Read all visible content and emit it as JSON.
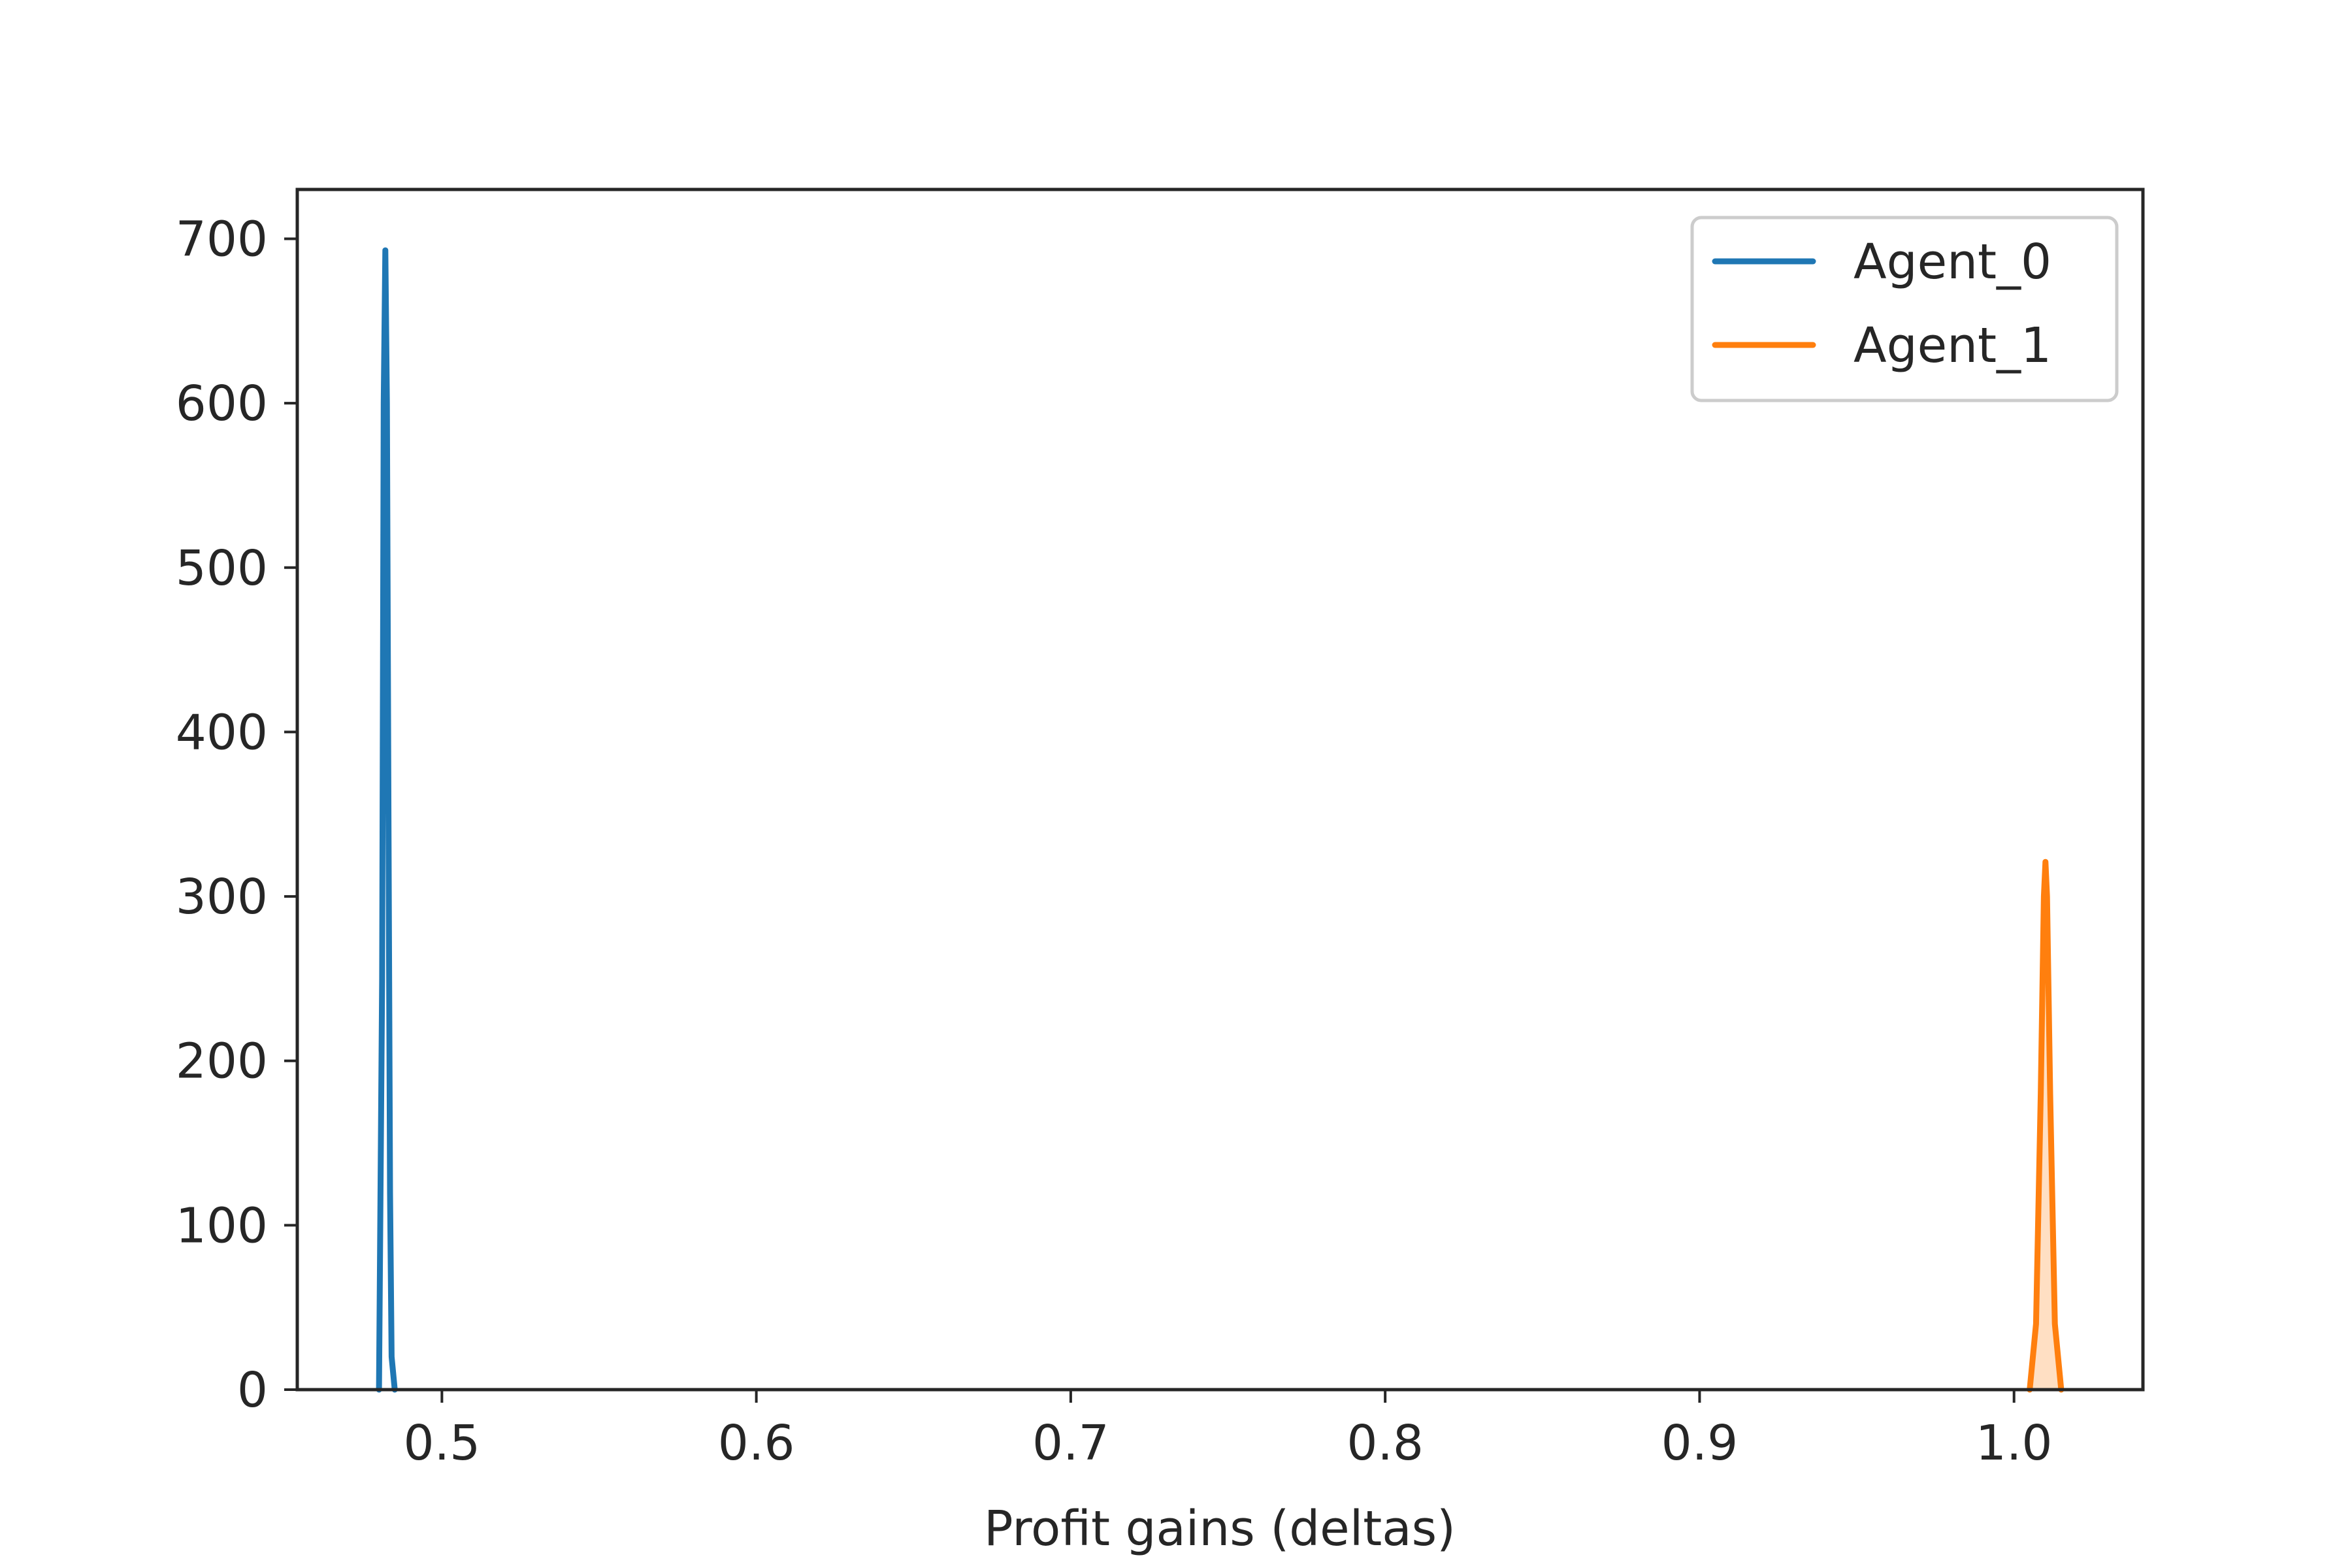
{
  "chart_data": {
    "type": "line",
    "title": "",
    "xlabel": "Profit gains (deltas)",
    "ylabel": "",
    "xlim": [
      0.454,
      1.041
    ],
    "ylim": [
      0,
      730
    ],
    "x_ticks": [
      "0.5",
      "0.6",
      "0.7",
      "0.8",
      "0.9",
      "1.0"
    ],
    "x_tick_values": [
      0.5,
      0.6,
      0.7,
      0.8,
      0.9,
      1.0
    ],
    "y_ticks": [
      "0",
      "100",
      "200",
      "300",
      "400",
      "500",
      "600",
      "700"
    ],
    "y_tick_values": [
      0,
      100,
      200,
      300,
      400,
      500,
      600,
      700
    ],
    "grid": false,
    "legend_position": "top-right",
    "series": [
      {
        "name": "Agent_0",
        "color": "#1f77b4",
        "fill": false,
        "x": [
          0.48,
          0.481,
          0.4815,
          0.482,
          0.4825,
          0.483,
          0.4835,
          0.484,
          0.485
        ],
        "y": [
          0,
          250,
          600,
          693,
          600,
          350,
          120,
          20,
          0
        ]
      },
      {
        "name": "Agent_1",
        "color": "#ff7f0e",
        "fill": true,
        "x": [
          1.005,
          1.007,
          1.0085,
          1.0095,
          1.01,
          1.0105,
          1.0115,
          1.013,
          1.015
        ],
        "y": [
          0,
          40,
          180,
          300,
          321,
          300,
          180,
          40,
          0
        ]
      }
    ]
  }
}
